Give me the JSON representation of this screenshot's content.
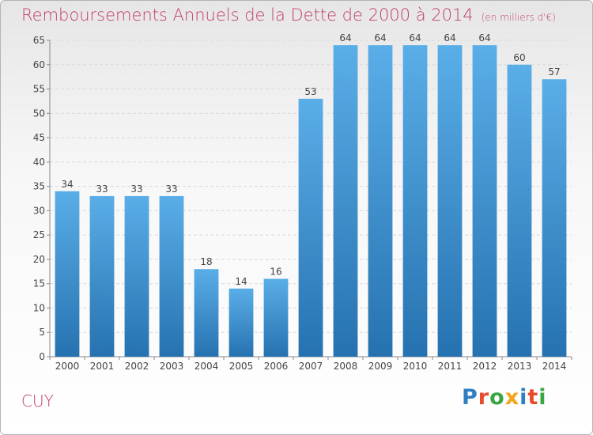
{
  "header": {
    "title": "Remboursements Annuels de la Dette de 2000 à 2014",
    "unit": "(en milliers d'€)"
  },
  "footer": {
    "commune": "CUY",
    "brand": "Proxiti"
  },
  "colors": {
    "bar_light": "#5aaee8",
    "bar_dark": "#2672b0",
    "title": "#c33e6b"
  },
  "chart_data": {
    "type": "bar",
    "title": "Remboursements Annuels de la Dette de 2000 à 2014",
    "subtitle": "(en milliers d'€)",
    "xlabel": "",
    "ylabel": "",
    "categories": [
      "2000",
      "2001",
      "2002",
      "2003",
      "2004",
      "2005",
      "2006",
      "2007",
      "2008",
      "2009",
      "2010",
      "2011",
      "2012",
      "2013",
      "2014"
    ],
    "values": [
      34,
      33,
      33,
      33,
      18,
      14,
      16,
      53,
      64,
      64,
      64,
      64,
      64,
      60,
      57
    ],
    "ylim": [
      0,
      65
    ],
    "yticks": [
      0,
      5,
      10,
      15,
      20,
      25,
      30,
      35,
      40,
      45,
      50,
      55,
      60,
      65
    ],
    "grid": true,
    "data_labels": true
  }
}
